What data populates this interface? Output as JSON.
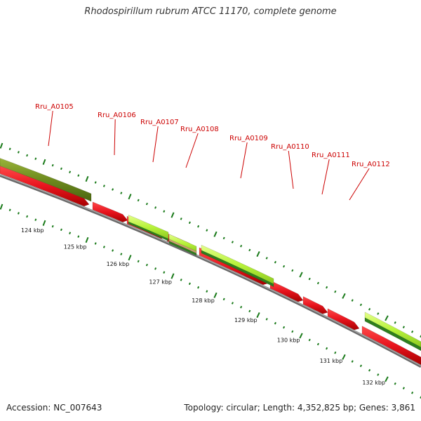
{
  "title": "Rhodospirillum rubrum ATCC 11170, complete genome",
  "footer": {
    "accession": "Accession: NC_007643",
    "topology": "Topology: circular; Length: 4,352,825 bp; Genes: 3,861"
  },
  "colors": {
    "gene_red": "#e8141e",
    "gene_red_dark": "#a00000",
    "olive": "#6d8b1e",
    "lime": "#b7f23a",
    "dark_green": "#2e7d1e",
    "tick_green": "#1a7a1a",
    "backbone": "#808080",
    "label_red": "#cc0000"
  },
  "chart_data": {
    "type": "genome-map",
    "scale_unit": "kbp",
    "scale_labels": [
      "124 kbp",
      "125 kbp",
      "126 kbp",
      "127 kbp",
      "128 kbp",
      "129 kbp",
      "130 kbp",
      "131 kbp",
      "132 kbp"
    ],
    "gene_labels": [
      "Rru_A0105",
      "Rru_A0106",
      "Rru_A0107",
      "Rru_A0108",
      "Rru_A0109",
      "Rru_A0110",
      "Rru_A0111",
      "Rru_A0112"
    ]
  }
}
